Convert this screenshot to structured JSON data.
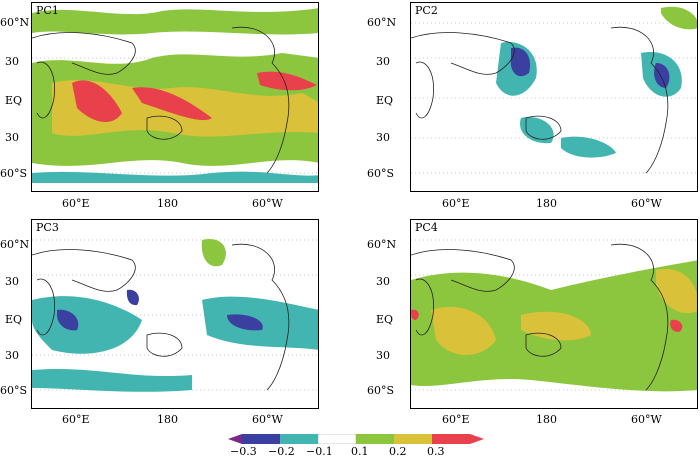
{
  "figure": {
    "panels": [
      {
        "id": "PC1",
        "label": "PC1"
      },
      {
        "id": "PC2",
        "label": "PC2"
      },
      {
        "id": "PC3",
        "label": "PC3"
      },
      {
        "id": "PC4",
        "label": "PC4"
      }
    ],
    "lat_ticks": [
      "60°N",
      "30",
      "EQ",
      "30",
      "60°S"
    ],
    "lon_ticks": [
      "60°E",
      "180",
      "60°W"
    ],
    "colorbar": {
      "labels": [
        "−0.3",
        "−0.2",
        "−0.1",
        "0.1",
        "0.2",
        "0.3"
      ],
      "colors": [
        "#7a2a86",
        "#3b3fa0",
        "#43b5b0",
        "#ffffff",
        "#8cc63f",
        "#d9c23a",
        "#e8414b"
      ]
    }
  }
}
